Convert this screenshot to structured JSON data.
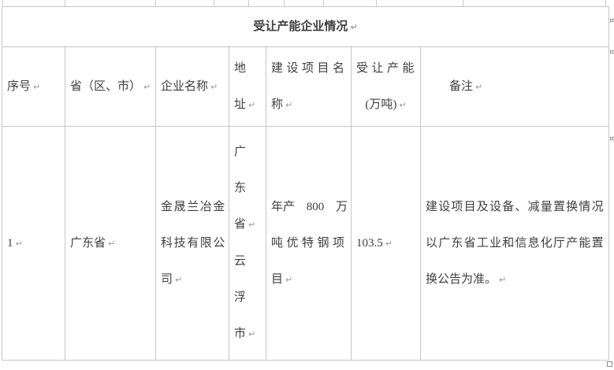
{
  "title_paras": [
    "受让产能企业情况"
  ],
  "marks": {
    "paragraph": "↵",
    "end_of_row": "¤"
  },
  "colors": {
    "border": "#c6c6c6",
    "text": "#3f3f3f",
    "formatting_mark": "#9a9a9a"
  },
  "table": {
    "columns": [
      {
        "key": "index",
        "label_paras": [
          "序号"
        ]
      },
      {
        "key": "province",
        "label_paras": [
          "省（区、市）"
        ]
      },
      {
        "key": "company",
        "label_paras": [
          "企业名称"
        ]
      },
      {
        "key": "address",
        "label_paras": [
          "地\n址"
        ]
      },
      {
        "key": "project",
        "label_paras": [
          "建设项目名\n称"
        ]
      },
      {
        "key": "capacity",
        "label_paras": [
          "受让产能\n(万吨)"
        ]
      },
      {
        "key": "remark",
        "label_paras": [
          "备注"
        ]
      }
    ],
    "rows": [
      {
        "index": [
          "1"
        ],
        "province": [
          "广东省"
        ],
        "company": [
          "金晟兰冶金\n科技有限公\n司"
        ],
        "address": [
          "广\n东\n省",
          "云\n浮\n市"
        ],
        "project": [
          "年产 800 万\n吨优特钢项\n目"
        ],
        "capacity": [
          "103.5"
        ],
        "remark": [
          "建设项目及设备、减量置换情况\n以广东省工业和信息化厅产能置\n换公告为准。"
        ]
      }
    ]
  }
}
